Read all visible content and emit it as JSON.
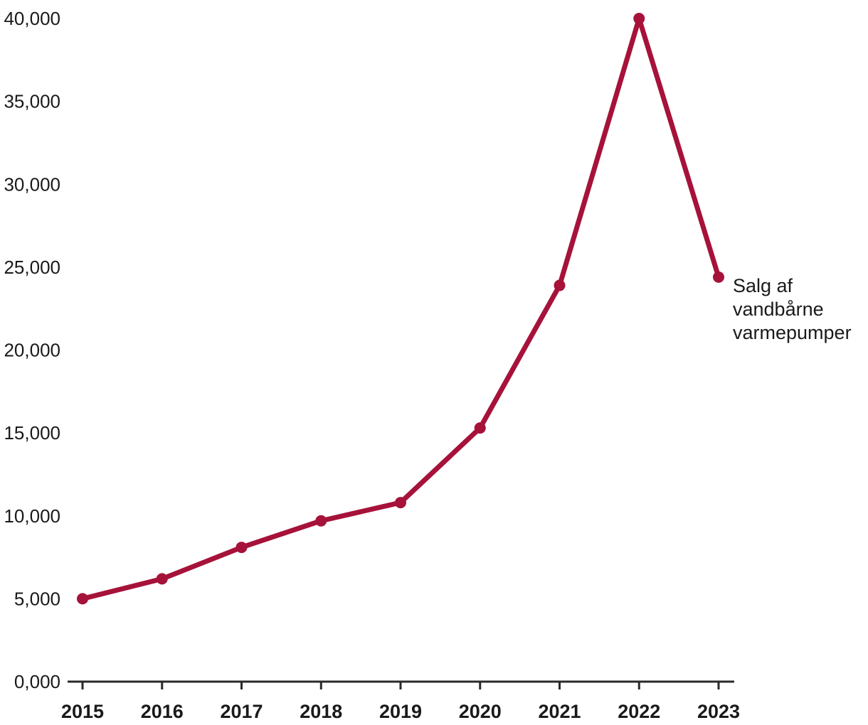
{
  "chart_data": {
    "type": "line",
    "title": "",
    "xlabel": "",
    "ylabel": "",
    "categories": [
      "2015",
      "2016",
      "2017",
      "2018",
      "2019",
      "2020",
      "2021",
      "2022",
      "2023"
    ],
    "series": [
      {
        "name": "Salg af vandbårne varmepumper",
        "label_lines": [
          "Salg af",
          "vandbårne",
          "varmepumper"
        ],
        "values": [
          5000,
          6200,
          8100,
          9700,
          10800,
          15300,
          23900,
          40000,
          24400
        ]
      }
    ],
    "ylim": [
      0,
      40000
    ],
    "y_ticks": [
      {
        "value": 0,
        "label": "0,000"
      },
      {
        "value": 5000,
        "label": "5,000"
      },
      {
        "value": 10000,
        "label": "10,000"
      },
      {
        "value": 15000,
        "label": "15,000"
      },
      {
        "value": 20000,
        "label": "20,000"
      },
      {
        "value": 25000,
        "label": "25,000"
      },
      {
        "value": 30000,
        "label": "30,000"
      },
      {
        "value": 35000,
        "label": "35,000"
      },
      {
        "value": 40000,
        "label": "40,000"
      }
    ],
    "grid": false,
    "legend_position": "right-of-last-point",
    "colors": {
      "line": "#A6123A",
      "marker": "#A6123A",
      "axis": "#2A2A2A",
      "tick_text": "#1A1A1A",
      "series_label_text": "#1A1A1A"
    }
  }
}
